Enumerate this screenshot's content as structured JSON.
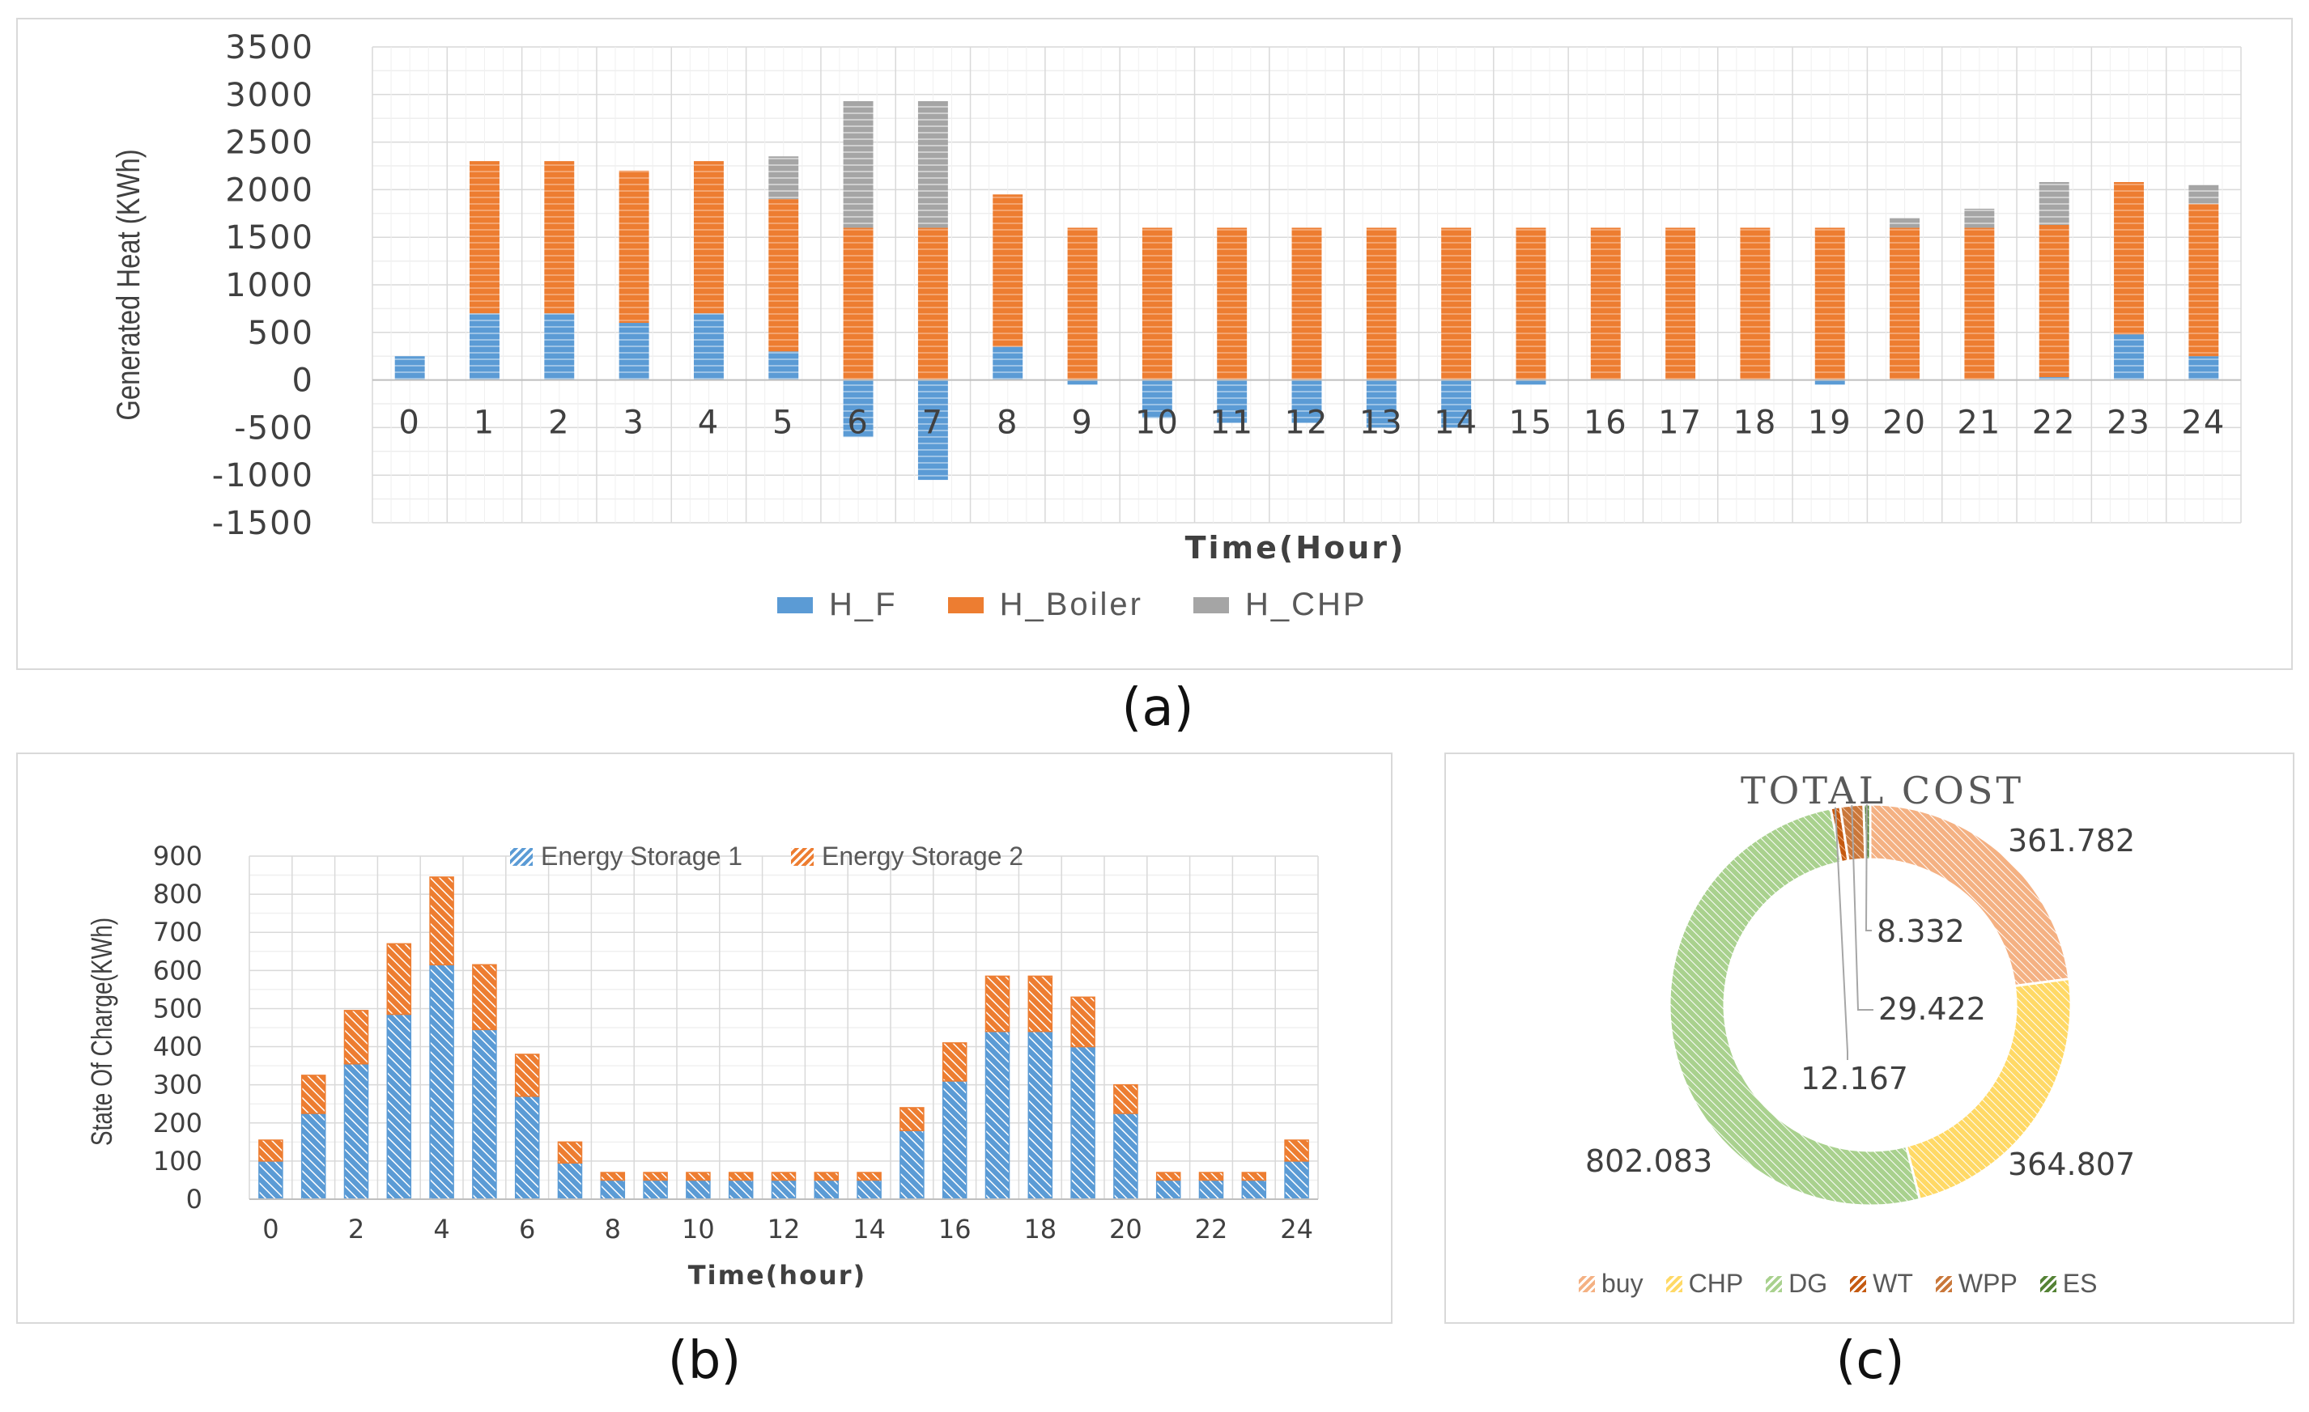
{
  "captions": {
    "a": "(a)",
    "b": "(b)",
    "c": "(c)"
  },
  "colors": {
    "h_f": "#5b9bd5",
    "h_boiler": "#ed7d31",
    "h_chp": "#a5a5a5",
    "es1": "#5b9bd5",
    "es2": "#ed7d31",
    "buy": "#f4b183",
    "chp": "#ffd966",
    "dg": "#a9d18e",
    "wt": "#c55a11",
    "wpp": "#c9773a",
    "es": "#548235"
  },
  "chart_data": [
    {
      "type": "bar",
      "stacked": true,
      "title": "",
      "xlabel": "Time(Hour)",
      "ylabel": "Generated Heat (KWh)",
      "ylim": [
        -1500,
        3500
      ],
      "yticks": [
        "3500",
        "3000",
        "2500",
        "2000",
        "1500",
        "1000",
        "500",
        "0",
        "-500",
        "-1000",
        "-1500"
      ],
      "categories": [
        "0",
        "1",
        "2",
        "3",
        "4",
        "5",
        "6",
        "7",
        "8",
        "9",
        "10",
        "11",
        "12",
        "13",
        "14",
        "15",
        "16",
        "17",
        "18",
        "19",
        "20",
        "21",
        "22",
        "23",
        "24"
      ],
      "series": [
        {
          "name": "H_F",
          "values": [
            250,
            700,
            700,
            600,
            700,
            300,
            -600,
            -1050,
            350,
            -50,
            -400,
            -450,
            -450,
            -500,
            -500,
            -50,
            0,
            0,
            0,
            -50,
            0,
            0,
            30,
            480,
            250
          ]
        },
        {
          "name": "H_Boiler",
          "values": [
            0,
            1600,
            1600,
            1600,
            1600,
            1600,
            1600,
            1600,
            1600,
            1600,
            1600,
            1600,
            1600,
            1600,
            1600,
            1600,
            1600,
            1600,
            1600,
            1600,
            1600,
            1600,
            1600,
            1600,
            1600
          ]
        },
        {
          "name": "H_CHP",
          "values": [
            0,
            0,
            0,
            0,
            0,
            450,
            1330,
            1330,
            0,
            0,
            0,
            0,
            0,
            0,
            0,
            0,
            0,
            0,
            0,
            0,
            100,
            200,
            450,
            0,
            200
          ]
        }
      ],
      "legend": [
        "H_F",
        "H_Boiler",
        "H_CHP"
      ],
      "legend_position": "bottom"
    },
    {
      "type": "bar",
      "stacked": true,
      "title": "",
      "xlabel": "Time(hour)",
      "ylabel": "State Of Charge(KWh)",
      "ylim": [
        0,
        900
      ],
      "yticks": [
        "900",
        "800",
        "700",
        "600",
        "500",
        "400",
        "300",
        "200",
        "100",
        "0"
      ],
      "categories": [
        "0",
        "1",
        "2",
        "3",
        "4",
        "5",
        "6",
        "7",
        "8",
        "9",
        "10",
        "11",
        "12",
        "13",
        "14",
        "15",
        "16",
        "17",
        "18",
        "19",
        "20",
        "21",
        "22",
        "23",
        "24"
      ],
      "x_tick_labels": [
        "0",
        "2",
        "4",
        "6",
        "8",
        "10",
        "12",
        "14",
        "16",
        "18",
        "20",
        "22",
        "24"
      ],
      "series": [
        {
          "name": "Energy Storage 1",
          "values": [
            100,
            225,
            355,
            485,
            615,
            445,
            270,
            95,
            50,
            50,
            50,
            50,
            50,
            50,
            50,
            180,
            310,
            440,
            440,
            400,
            225,
            50,
            50,
            50,
            100
          ]
        },
        {
          "name": "Energy Storage 2",
          "values": [
            55,
            100,
            140,
            185,
            230,
            170,
            110,
            55,
            20,
            20,
            20,
            20,
            20,
            20,
            20,
            60,
            100,
            145,
            145,
            130,
            75,
            20,
            20,
            20,
            55
          ]
        }
      ],
      "legend": [
        "Energy Storage 1",
        "Energy Storage 2"
      ],
      "legend_position": "top"
    },
    {
      "type": "pie",
      "donut": true,
      "title": "TOTAL COST",
      "labels": [
        "buy",
        "CHP",
        "DG",
        "WT",
        "WPP",
        "ES"
      ],
      "values": [
        361.782,
        364.807,
        802.083,
        12.167,
        29.422,
        8.332
      ],
      "data_labels": [
        "361.782",
        "364.807",
        "802.083",
        "12.167",
        "29.422",
        "8.332"
      ],
      "legend_position": "bottom"
    }
  ]
}
